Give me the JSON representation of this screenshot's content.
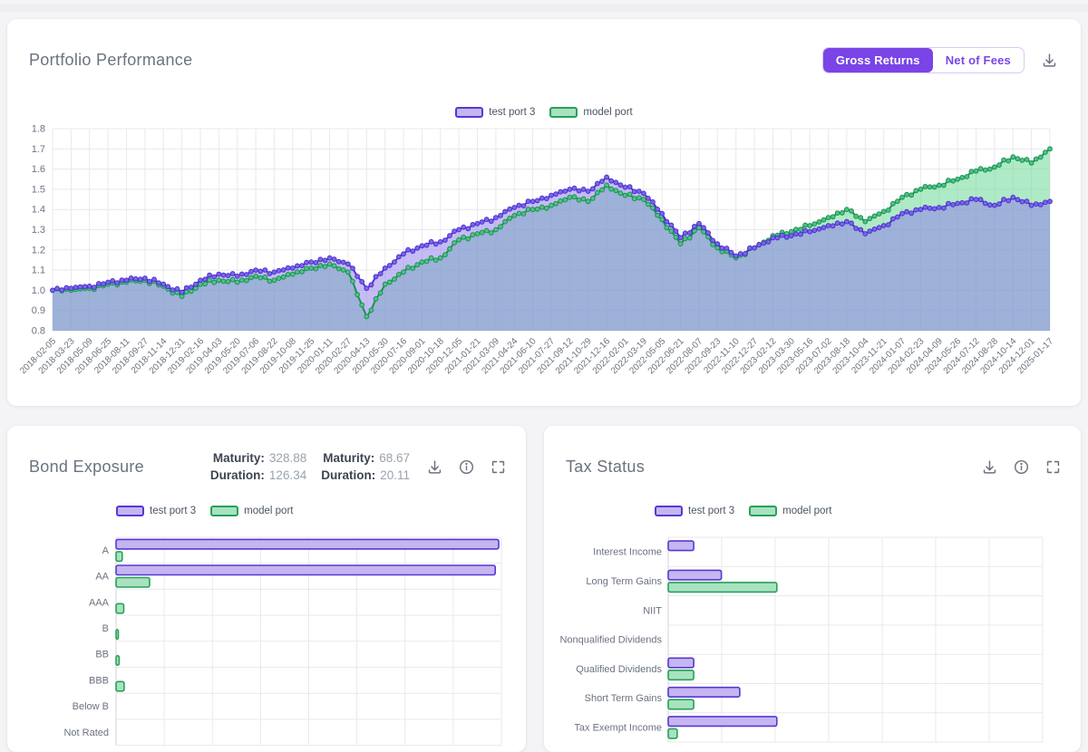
{
  "colors": {
    "accent": "#7a44e6",
    "purple_line": "#4b32cf",
    "purple_marker": "#7a66e8",
    "purple_fill": "rgba(139,120,235,0.50)",
    "purple_swatch": "#c6b5f0",
    "purple_border": "#5639d4",
    "green_line": "#1c9150",
    "green_marker": "#4ec287",
    "green_fill": "rgba(109,216,151,0.55)",
    "green_swatch": "#a8e2c0",
    "green_border": "#27a05a",
    "grid": "#e9e9ec",
    "axis_text": "#6b7280"
  },
  "performance_panel": {
    "title": "Portfolio Performance",
    "toggle": {
      "active_label": "Gross Returns",
      "inactive_label": "Net of Fees"
    }
  },
  "bond_panel": {
    "title": "Bond Exposure",
    "stats": [
      {
        "label": "Maturity:",
        "value": "328.88"
      },
      {
        "label": "Maturity:",
        "value": "68.67"
      },
      {
        "label": "Duration:",
        "value": "126.34"
      },
      {
        "label": "Duration:",
        "value": "20.11"
      }
    ]
  },
  "tax_panel": {
    "title": "Tax Status"
  },
  "chart_data": [
    {
      "id": "portfolio_performance",
      "type": "area",
      "title": "Portfolio Performance",
      "legend_position": "top-center",
      "grid": true,
      "ylim": [
        0.8,
        1.8
      ],
      "yticks": [
        "1.8",
        "1.7",
        "1.6",
        "1.5",
        "1.4",
        "1.3",
        "1.2",
        "1.1",
        "1.0",
        "0.9",
        "0.8"
      ],
      "x": [
        "2018-02-05",
        "2018-03-23",
        "2018-05-09",
        "2018-06-25",
        "2018-08-11",
        "2018-09-27",
        "2018-11-14",
        "2018-12-31",
        "2019-02-16",
        "2019-04-03",
        "2019-05-20",
        "2019-07-06",
        "2019-08-22",
        "2019-10-08",
        "2019-11-25",
        "2020-01-11",
        "2020-02-27",
        "2020-04-13",
        "2020-05-30",
        "2020-07-16",
        "2020-09-01",
        "2020-10-18",
        "2020-12-05",
        "2021-01-21",
        "2021-03-09",
        "2021-04-24",
        "2021-06-10",
        "2021-07-27",
        "2021-09-12",
        "2021-10-29",
        "2021-12-16",
        "2022-02-01",
        "2022-03-19",
        "2022-05-05",
        "2022-06-21",
        "2022-08-07",
        "2022-09-23",
        "2022-11-10",
        "2022-12-27",
        "2023-02-12",
        "2023-03-30",
        "2023-05-16",
        "2023-07-02",
        "2023-08-18",
        "2023-10-04",
        "2023-11-21",
        "2024-01-07",
        "2024-02-23",
        "2024-04-09",
        "2024-05-26",
        "2024-07-12",
        "2024-08-28",
        "2024-10-14",
        "2024-12-01",
        "2025-01-17"
      ],
      "series": [
        {
          "name": "test port 3",
          "values": [
            1.0,
            1.01,
            1.02,
            1.04,
            1.05,
            1.06,
            1.03,
            0.99,
            1.05,
            1.08,
            1.07,
            1.1,
            1.09,
            1.11,
            1.14,
            1.16,
            1.13,
            1.01,
            1.11,
            1.18,
            1.22,
            1.24,
            1.3,
            1.33,
            1.36,
            1.41,
            1.44,
            1.47,
            1.5,
            1.49,
            1.56,
            1.51,
            1.48,
            1.38,
            1.26,
            1.33,
            1.23,
            1.17,
            1.21,
            1.26,
            1.27,
            1.29,
            1.32,
            1.34,
            1.28,
            1.32,
            1.38,
            1.4,
            1.41,
            1.43,
            1.45,
            1.42,
            1.46,
            1.42,
            1.44
          ]
        },
        {
          "name": "model port",
          "values": [
            1.0,
            1.0,
            1.01,
            1.03,
            1.04,
            1.05,
            1.02,
            0.97,
            1.03,
            1.05,
            1.04,
            1.07,
            1.05,
            1.08,
            1.11,
            1.13,
            1.09,
            0.87,
            1.03,
            1.09,
            1.14,
            1.16,
            1.25,
            1.28,
            1.3,
            1.37,
            1.4,
            1.42,
            1.46,
            1.44,
            1.52,
            1.47,
            1.45,
            1.35,
            1.23,
            1.31,
            1.21,
            1.16,
            1.21,
            1.27,
            1.29,
            1.32,
            1.36,
            1.4,
            1.34,
            1.39,
            1.46,
            1.5,
            1.52,
            1.55,
            1.59,
            1.61,
            1.66,
            1.63,
            1.7
          ]
        }
      ]
    },
    {
      "id": "bond_exposure",
      "type": "bar",
      "orientation": "horizontal",
      "title": "Bond Exposure",
      "categories": [
        "A",
        "AA",
        "AAA",
        "B",
        "BB",
        "BBB",
        "Below B",
        "Not Rated"
      ],
      "series": [
        {
          "name": "test port 3",
          "values_pct": [
            99.3,
            98.4,
            0,
            0,
            0,
            0,
            0,
            0
          ]
        },
        {
          "name": "model port",
          "values_pct": [
            1.6,
            8.7,
            2.0,
            0.6,
            0.8,
            2.1,
            0,
            0
          ]
        }
      ]
    },
    {
      "id": "tax_status",
      "type": "bar",
      "orientation": "horizontal",
      "title": "Tax Status",
      "categories": [
        "Interest Income",
        "Long Term Gains",
        "NIIT",
        "Nonqualified Dividends",
        "Qualified Dividends",
        "Short Term Gains",
        "Tax Exempt Income"
      ],
      "series": [
        {
          "name": "test port 3",
          "values_pct": [
            6.8,
            14.2,
            0,
            0,
            6.8,
            19.1,
            29.0
          ]
        },
        {
          "name": "model port",
          "values_pct": [
            0,
            29.0,
            0,
            0,
            6.8,
            6.8,
            2.4
          ]
        }
      ]
    }
  ]
}
